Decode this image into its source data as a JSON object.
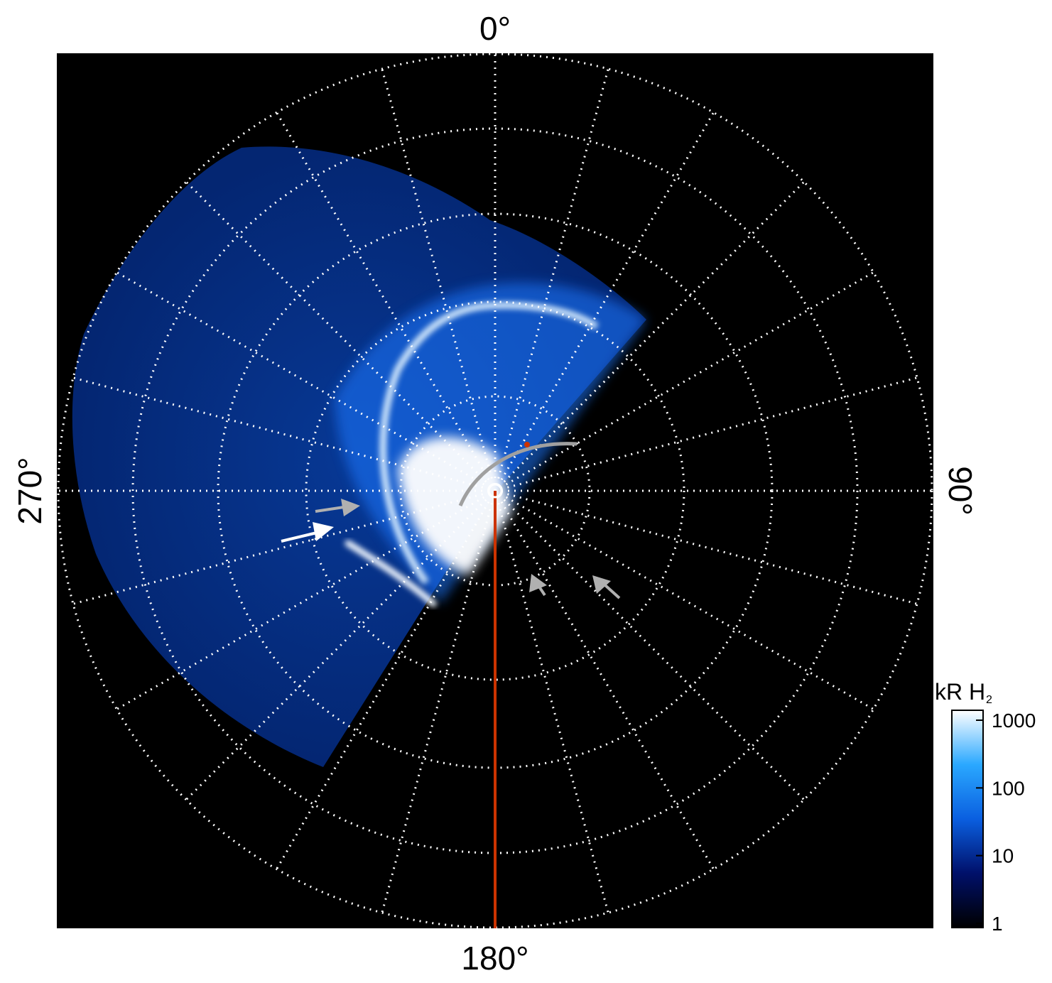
{
  "projection": {
    "labels": {
      "top": "0°",
      "right": "90°",
      "bottom": "180°",
      "left": "270°"
    }
  },
  "colorbar": {
    "title_main": "kR H",
    "title_sub": "2",
    "ticks": [
      "1000",
      "100",
      "10",
      "1"
    ],
    "scale": "log",
    "colors": [
      "#000000",
      "#00106a",
      "#0a5fe0",
      "#2aa8ff",
      "#ffffff"
    ]
  },
  "colors": {
    "background": "#000000",
    "grid": "#ffffff",
    "meridian_line": "#cc3300",
    "arc_marker": "#a0a0a0",
    "arrow_white": "#ffffff",
    "arrow_gray": "#b0b0b0"
  }
}
